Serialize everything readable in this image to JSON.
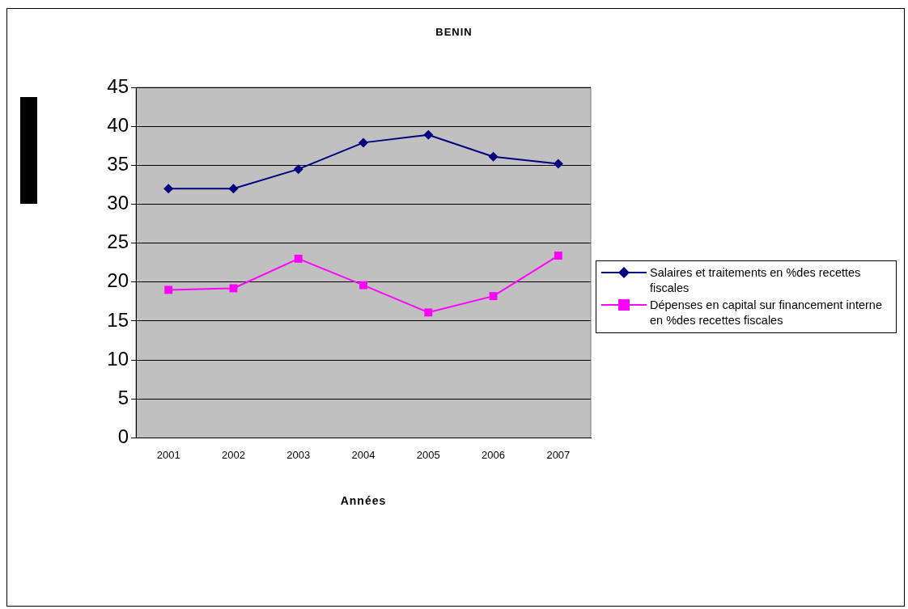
{
  "chart_data": {
    "type": "line",
    "title": "BENIN",
    "xlabel": "Années",
    "categories": [
      "2001",
      "2002",
      "2003",
      "2004",
      "2005",
      "2006",
      "2007"
    ],
    "series": [
      {
        "name": "Salaires et traitements en %des recettes fiscales",
        "color": "#000080",
        "marker": "diamond",
        "values": [
          32,
          32,
          34.5,
          37.9,
          38.9,
          36.1,
          35.2
        ]
      },
      {
        "name": "Dépenses en capital sur financement interne en %des recettes fiscales",
        "color": "#ff00ff",
        "marker": "square",
        "values": [
          19.0,
          19.2,
          23.0,
          19.6,
          16.1,
          18.2,
          23.4
        ]
      }
    ],
    "ylim": [
      0,
      45
    ],
    "yticks": [
      0,
      5,
      10,
      15,
      20,
      25,
      30,
      35,
      40,
      45
    ],
    "grid": "y",
    "legend": "right"
  }
}
